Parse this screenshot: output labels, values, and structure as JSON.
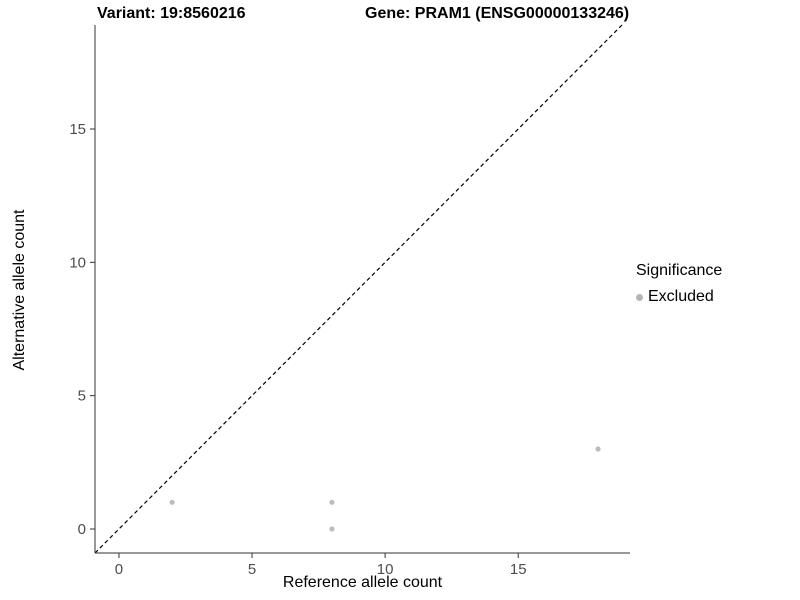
{
  "chart_data": {
    "type": "scatter",
    "title_left": "Variant: 19:8560216",
    "title_right": "Gene: PRAM1 (ENSG00000133246)",
    "xlabel": "Reference allele count",
    "ylabel": "Alternative allele count",
    "xlim": [
      -0.9,
      19.2
    ],
    "ylim": [
      -0.9,
      18.9
    ],
    "xticks": [
      0,
      5,
      10,
      15
    ],
    "yticks": [
      0,
      5,
      10,
      15
    ],
    "points": [
      {
        "x": 2,
        "y": 1,
        "series": "Excluded"
      },
      {
        "x": 8,
        "y": 1,
        "series": "Excluded"
      },
      {
        "x": 8,
        "y": 0,
        "series": "Excluded"
      },
      {
        "x": 18,
        "y": 3,
        "series": "Excluded"
      }
    ],
    "identity_line": true,
    "grid": false,
    "point_color": "#bdbdbd",
    "axis_color": "#333333",
    "tick_label_color": "#4d4d4d",
    "line_color": "#000000",
    "legend": {
      "title": "Significance",
      "position": "right",
      "items": [
        {
          "label": "Excluded",
          "color": "#b5b5b5"
        }
      ]
    }
  }
}
